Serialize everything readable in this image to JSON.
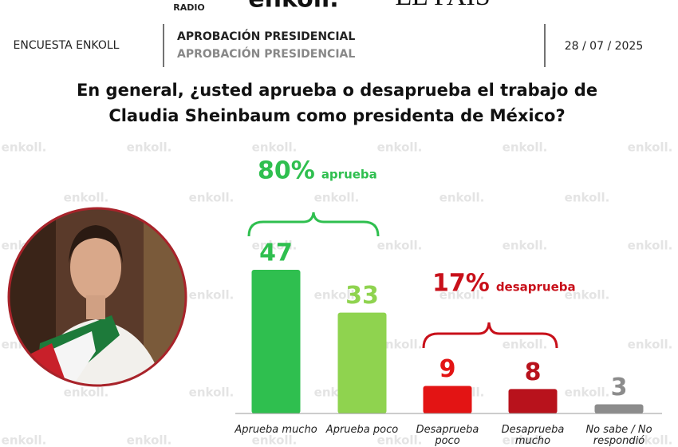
{
  "header": {
    "logos": [
      "RADIO",
      "enkoll.",
      "EL PAIS"
    ],
    "left": "ENCUESTA ENKOLL",
    "title": "APROBACIÓN PRESIDENCIAL",
    "subtitle": "APROBACIÓN PRESIDENCIAL",
    "date": "28 / 07 / 2025"
  },
  "watermark": "enkoll.",
  "chart_data": {
    "type": "bar",
    "title": "En general, ¿usted aprueba o desaprueba el trabajo de Claudia Sheinbaum como presidenta de México?",
    "categories": [
      "Aprueba mucho",
      "Aprueba poco",
      "Desaprueba poco",
      "Desaprueba mucho",
      "No sabe / No respondió"
    ],
    "values": [
      47,
      33,
      9,
      8,
      3
    ],
    "colors": [
      "#2fbf4f",
      "#8fd34f",
      "#e31414",
      "#b8121c",
      "#8c8c8c"
    ],
    "annotations": [
      {
        "value": "80%",
        "text": "aprueba",
        "color": "#2fbf4f"
      },
      {
        "value": "17%",
        "text": "desaprueba",
        "color": "#c8101a"
      }
    ]
  }
}
